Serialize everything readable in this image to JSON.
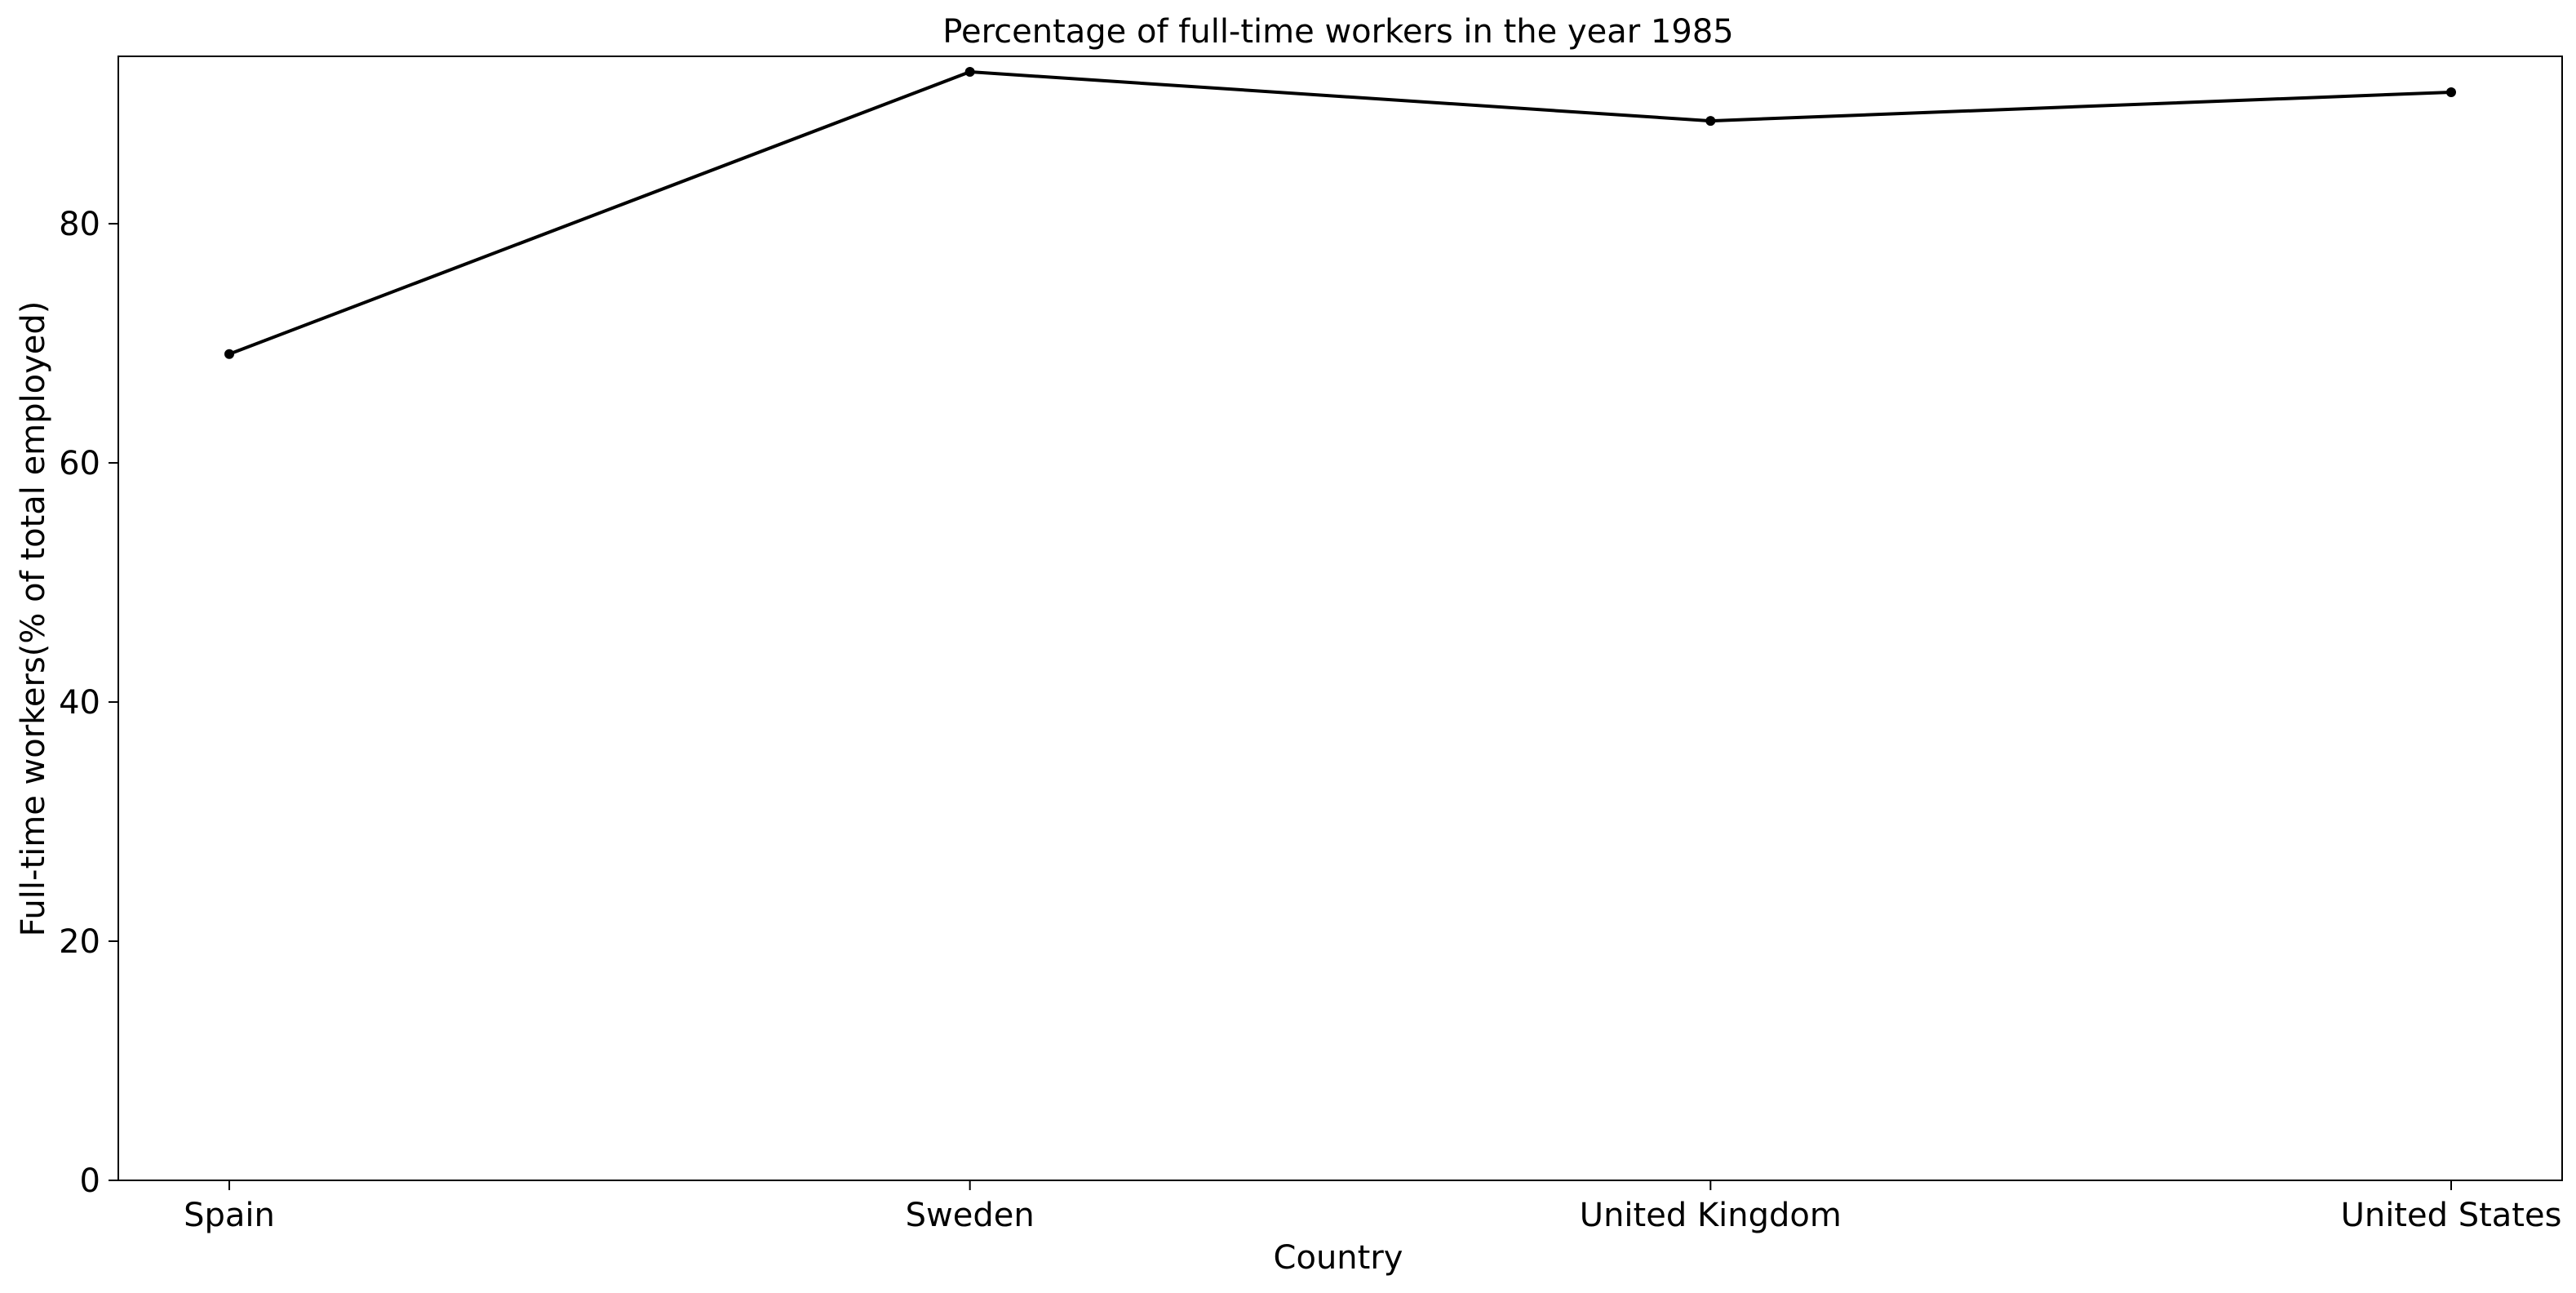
{
  "chart_data": {
    "type": "line",
    "title": "Percentage of full-time workers in the year 1985",
    "xlabel": "Country",
    "ylabel": "Full-time workers(% of total employed)",
    "categories": [
      "Spain",
      "Sweden",
      "United Kingdom",
      "United States"
    ],
    "series": [
      {
        "values": [
          69.1,
          92.7,
          88.6,
          91.0
        ]
      }
    ],
    "ylim": [
      0,
      94.0
    ],
    "yticks": [
      0,
      20,
      40,
      60,
      80
    ],
    "grid": false,
    "legend": "none",
    "colors": {
      "line": "#000000",
      "marker": "#000000",
      "axes": "#000000",
      "background": "#ffffff"
    }
  }
}
